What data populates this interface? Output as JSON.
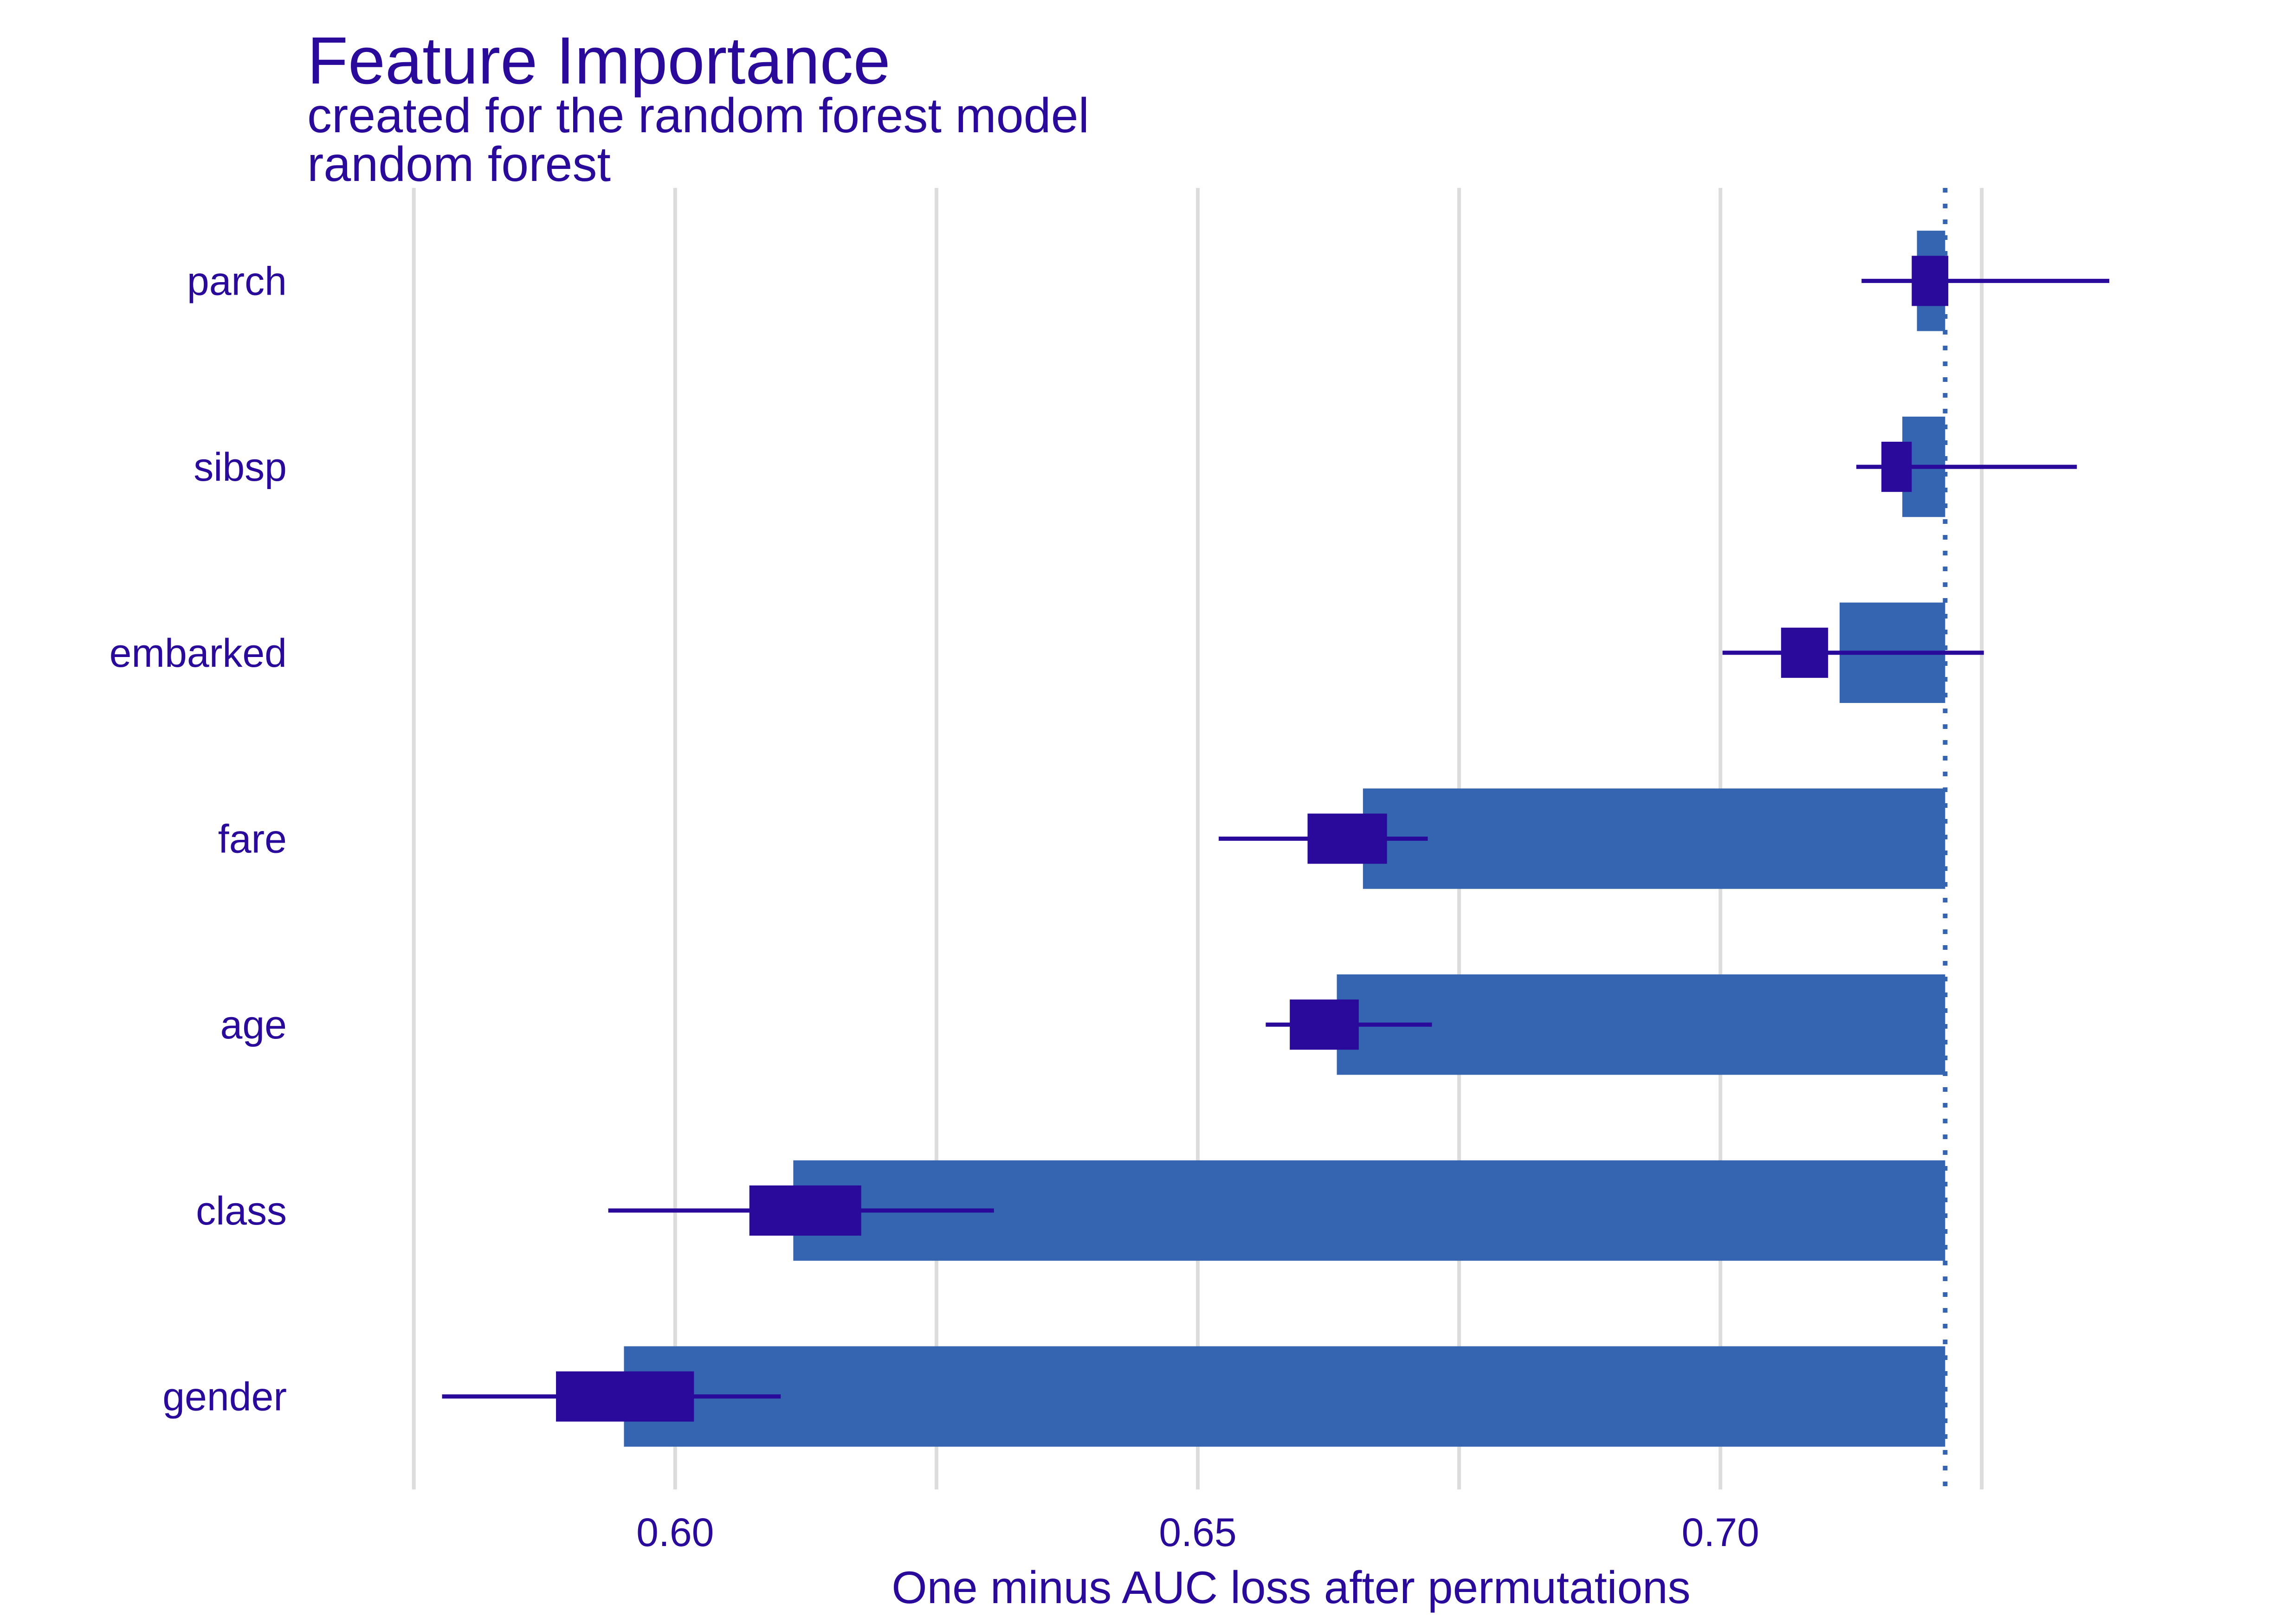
{
  "colors": {
    "bar": "#3564b1",
    "box": "#2a0a9a",
    "whisker": "#2a0a9a",
    "baseline": "#3564b1",
    "text": "#2a0a9a",
    "grid": "#dcdcdc"
  },
  "chart_data": {
    "type": "bar",
    "orientation": "horizontal",
    "title": "Feature Importance",
    "subtitle": "created for the random forest model",
    "model_label": "random forest",
    "xlabel": "One minus AUC loss after permutations",
    "ylabel": "",
    "xlim": [
      0.5648,
      0.7352
    ],
    "xticks": [
      0.6,
      0.65,
      0.7
    ],
    "xtick_labels": [
      "0.60",
      "0.65",
      "0.70"
    ],
    "grid": true,
    "baseline": 0.7215,
    "categories": [
      "parch",
      "sibsp",
      "embarked",
      "fare",
      "age",
      "class",
      "gender"
    ],
    "values": [
      0.7188,
      0.7174,
      0.7114,
      0.6658,
      0.6633,
      0.6113,
      0.5951
    ],
    "box_low": [
      0.7183,
      0.7154,
      0.7058,
      0.6605,
      0.6588,
      0.6071,
      0.5886
    ],
    "box_high": [
      0.7218,
      0.7183,
      0.7103,
      0.6681,
      0.6654,
      0.6178,
      0.6018
    ],
    "whisker_low": [
      0.7135,
      0.713,
      0.7002,
      0.652,
      0.6565,
      0.5936,
      0.5777
    ],
    "whisker_high": [
      0.7372,
      0.7341,
      0.7252,
      0.672,
      0.6724,
      0.6305,
      0.6101
    ]
  }
}
